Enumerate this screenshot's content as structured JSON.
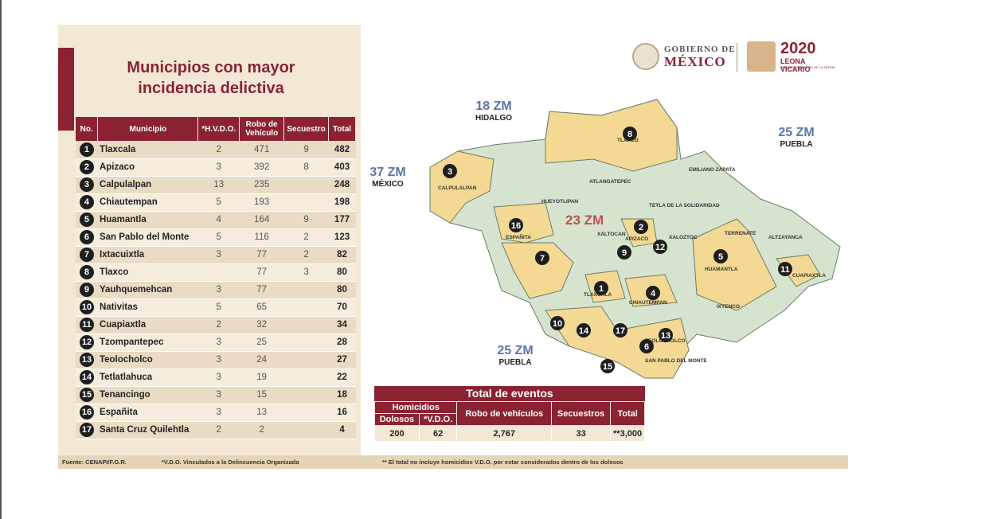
{
  "title": "Municipios con mayor incidencia delictiva",
  "logo": {
    "gov_line1": "GOBIERNO DE",
    "gov_line2": "MÉXICO",
    "year": "2020",
    "name": "LEONA VICARIO",
    "subtitle": "BENEMÉRITA MADRE DE LA PATRIA"
  },
  "table": {
    "headers": [
      "No.",
      "Municipio",
      "*H.V.D.O.",
      "Robo de Vehículo",
      "Secuestro",
      "Total"
    ],
    "rows": [
      {
        "no": "1",
        "municipio": "Tlaxcala",
        "hvdo": "2",
        "robo": "471",
        "secuestro": "9",
        "total": "482"
      },
      {
        "no": "2",
        "municipio": "Apizaco",
        "hvdo": "3",
        "robo": "392",
        "secuestro": "8",
        "total": "403"
      },
      {
        "no": "3",
        "municipio": "Calpulalpan",
        "hvdo": "13",
        "robo": "235",
        "secuestro": "",
        "total": "248"
      },
      {
        "no": "4",
        "municipio": "Chiautempan",
        "hvdo": "5",
        "robo": "193",
        "secuestro": "",
        "total": "198"
      },
      {
        "no": "5",
        "municipio": "Huamantla",
        "hvdo": "4",
        "robo": "164",
        "secuestro": "9",
        "total": "177"
      },
      {
        "no": "6",
        "municipio": "San Pablo del Monte",
        "hvdo": "5",
        "robo": "116",
        "secuestro": "2",
        "total": "123"
      },
      {
        "no": "7",
        "municipio": "Ixtacuixtla",
        "hvdo": "3",
        "robo": "77",
        "secuestro": "2",
        "total": "82"
      },
      {
        "no": "8",
        "municipio": "Tlaxco",
        "hvdo": "",
        "robo": "77",
        "secuestro": "3",
        "total": "80"
      },
      {
        "no": "9",
        "municipio": "Yauhquemehcan",
        "hvdo": "3",
        "robo": "77",
        "secuestro": "",
        "total": "80"
      },
      {
        "no": "10",
        "municipio": "Nativitas",
        "hvdo": "5",
        "robo": "65",
        "secuestro": "",
        "total": "70"
      },
      {
        "no": "11",
        "municipio": "Cuapiaxtla",
        "hvdo": "2",
        "robo": "32",
        "secuestro": "",
        "total": "34"
      },
      {
        "no": "12",
        "municipio": "Tzompantepec",
        "hvdo": "3",
        "robo": "25",
        "secuestro": "",
        "total": "28"
      },
      {
        "no": "13",
        "municipio": "Teolocholco",
        "hvdo": "3",
        "robo": "24",
        "secuestro": "",
        "total": "27"
      },
      {
        "no": "14",
        "municipio": "Tetlatlahuca",
        "hvdo": "3",
        "robo": "19",
        "secuestro": "",
        "total": "22"
      },
      {
        "no": "15",
        "municipio": "Tenancingo",
        "hvdo": "3",
        "robo": "15",
        "secuestro": "",
        "total": "18"
      },
      {
        "no": "16",
        "municipio": "Españita",
        "hvdo": "3",
        "robo": "13",
        "secuestro": "",
        "total": "16"
      },
      {
        "no": "17",
        "municipio": "Santa Cruz Quilehtla",
        "hvdo": "2",
        "robo": "2",
        "secuestro": "",
        "total": "4"
      }
    ]
  },
  "map": {
    "regions": [
      {
        "zm": "18 ZM",
        "state": "HIDALGO"
      },
      {
        "zm": "25 ZM",
        "state": "PUEBLA"
      },
      {
        "zm": "37 ZM",
        "state": "MÉXICO"
      },
      {
        "zm": "25 ZM",
        "state": "PUEBLA"
      }
    ],
    "center_zm": "23 ZM",
    "labels": [
      "TLAXCO",
      "CALPULALPAN",
      "ESPAÑITA",
      "HUAMANTLA",
      "CUAPIAXTLA",
      "TLAXCALA",
      "CHIAUTEMPAN",
      "APIZACO",
      "TEOLOCHOLCO",
      "SAN PABLO DEL MONTE",
      "XALOZTOC",
      "TERRENATE",
      "ALTZAYANCA",
      "ATLANGATEPEC",
      "HUEYOTLIPAN",
      "XALTOCAN",
      "IXTENCO",
      "EMILIANO ZAPATA",
      "TETLA DE LA SOLIDARIDAD"
    ],
    "colors": {
      "highlight": "#f3d993",
      "other": "#d6e4cf",
      "border": "#6a7a6a",
      "marker": "#1e1e1e"
    }
  },
  "totals": {
    "title": "Total de eventos",
    "homicidios_label": "Homicidios",
    "dolosos_label": "Dolosos",
    "vdo_label": "*V.D.O.",
    "robo_label": "Robo de vehículos",
    "secuestros_label": "Secuestros",
    "total_label": "Total",
    "dolosos": "200",
    "vdo": "62",
    "robo": "2,767",
    "secuestros": "33",
    "total": "**3,000"
  },
  "footer": {
    "source": "Fuente: CENAPI/F.G.R.",
    "note1": "*V.D.O. Vinculados a la Delincuencia Organizada",
    "note2": "** El total no incluye homicidios V.D.O. por estar considerados dentro de los dolosos"
  },
  "accent_color": "#8b2232"
}
